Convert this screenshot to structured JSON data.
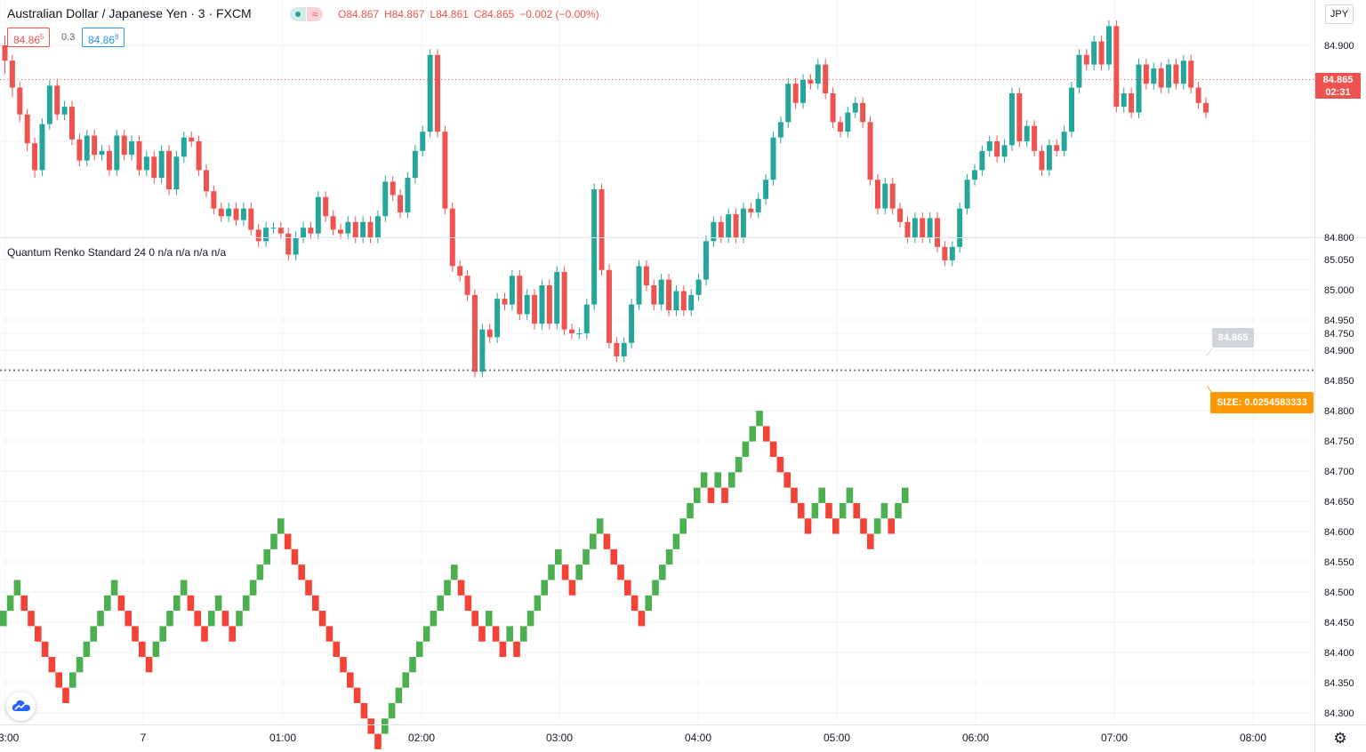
{
  "header": {
    "symbol_title": "Australian Dollar / Japanese Yen · 3 · FXCM",
    "ohlc": {
      "open": "O84.867",
      "high": "H84.867",
      "low": "L84.861",
      "close": "C84.865",
      "change": "−0.002 (−0.00%)"
    },
    "bid": {
      "main": "84.86",
      "small": "5"
    },
    "spread": "0.3",
    "ask": {
      "main": "84.86",
      "small": "8"
    },
    "currency": "JPY",
    "status_icon": "market-open-dot",
    "wave_icon": "≈"
  },
  "indicator": {
    "title": "Quantum Renko Standard 24 0  n/a  n/a  n/a  n/a"
  },
  "price_scale": {
    "top_ticks": [
      "84.900",
      "84.800",
      "84.750"
    ],
    "bottom_ticks": [
      "85.050",
      "85.000",
      "84.950",
      "84.900",
      "84.850",
      "84.800",
      "84.750",
      "84.700",
      "84.650",
      "84.600",
      "84.550",
      "84.500",
      "84.450",
      "84.400",
      "84.350",
      "84.300"
    ],
    "last_price": "84.865",
    "countdown": "02:31",
    "renko_last": "84.865",
    "size_label": "SIZE: 0.0254583333"
  },
  "time_axis": [
    "3:00",
    "7",
    "01:00",
    "02:00",
    "03:00",
    "04:00",
    "05:00",
    "06:00",
    "07:00",
    "08:00"
  ],
  "colors": {
    "up": "#26a69a",
    "down": "#ef5350",
    "renko_up": "#4caf50",
    "renko_down": "#f44336",
    "grid": "#f0f3fa",
    "accent_orange": "#ff9800"
  },
  "chart_data": [
    {
      "type": "candlestick",
      "title": "Australian Dollar / Japanese Yen · 3 · FXCM",
      "ylim": [
        84.715,
        84.935
      ],
      "x_range_hours": [
        -1.03,
        8.1
      ],
      "candles": [
        [
          84.9,
          84.892,
          84.905,
          84.885
        ],
        [
          84.892,
          84.878,
          84.895,
          84.873
        ],
        [
          84.878,
          84.864,
          84.881,
          84.86
        ],
        [
          84.864,
          84.849,
          84.867,
          84.845
        ],
        [
          84.849,
          84.835,
          84.852,
          84.831
        ],
        [
          84.835,
          84.859,
          84.862,
          84.832
        ],
        [
          84.859,
          84.879,
          84.882,
          84.856
        ],
        [
          84.879,
          84.864,
          84.882,
          84.861
        ],
        [
          84.864,
          84.868,
          84.871,
          84.861
        ],
        [
          84.868,
          84.851,
          84.871,
          84.848
        ],
        [
          84.851,
          84.84,
          84.854,
          84.837
        ],
        [
          84.84,
          84.853,
          84.856,
          84.837
        ],
        [
          84.853,
          84.843,
          84.856,
          84.84
        ],
        [
          84.843,
          84.845,
          84.848,
          84.84
        ],
        [
          84.845,
          84.835,
          84.848,
          84.832
        ],
        [
          84.835,
          84.853,
          84.856,
          84.832
        ],
        [
          84.853,
          84.843,
          84.856,
          84.84
        ],
        [
          84.843,
          84.85,
          84.853,
          84.84
        ],
        [
          84.85,
          84.835,
          84.853,
          84.832
        ],
        [
          84.835,
          84.842,
          84.845,
          84.832
        ],
        [
          84.842,
          84.831,
          84.845,
          84.828
        ],
        [
          84.831,
          84.845,
          84.848,
          84.828
        ],
        [
          84.845,
          84.825,
          84.848,
          84.822
        ],
        [
          84.825,
          84.842,
          84.845,
          84.822
        ],
        [
          84.842,
          84.852,
          84.855,
          84.839
        ],
        [
          84.852,
          84.85,
          84.855,
          84.847
        ],
        [
          84.85,
          84.835,
          84.853,
          84.832
        ],
        [
          84.835,
          84.824,
          84.838,
          84.821
        ],
        [
          84.824,
          84.815,
          84.827,
          84.812
        ],
        [
          84.815,
          84.811,
          84.818,
          84.808
        ],
        [
          84.811,
          84.815,
          84.818,
          84.808
        ],
        [
          84.815,
          84.809,
          84.818,
          84.806
        ],
        [
          84.809,
          84.815,
          84.818,
          84.806
        ],
        [
          84.815,
          84.804,
          84.818,
          84.801
        ],
        [
          84.804,
          84.798,
          84.807,
          84.795
        ],
        [
          84.798,
          84.805,
          84.808,
          84.795
        ],
        [
          84.805,
          84.805,
          84.808,
          84.802
        ],
        [
          84.805,
          84.802,
          84.808,
          84.799
        ],
        [
          84.802,
          84.791,
          84.805,
          84.788
        ],
        [
          84.791,
          84.8,
          84.803,
          84.788
        ],
        [
          84.8,
          84.805,
          84.808,
          84.797
        ],
        [
          84.805,
          84.802,
          84.808,
          84.799
        ],
        [
          84.802,
          84.821,
          84.824,
          84.799
        ],
        [
          84.821,
          84.811,
          84.824,
          84.808
        ],
        [
          84.811,
          84.804,
          84.814,
          84.801
        ],
        [
          84.804,
          84.802,
          84.807,
          84.799
        ],
        [
          84.802,
          84.808,
          84.811,
          84.799
        ],
        [
          84.808,
          84.8,
          84.811,
          84.797
        ],
        [
          84.8,
          84.808,
          84.811,
          84.797
        ],
        [
          84.808,
          84.8,
          84.811,
          84.797
        ],
        [
          84.8,
          84.811,
          84.814,
          84.797
        ],
        [
          84.811,
          84.829,
          84.832,
          84.808
        ],
        [
          84.829,
          84.822,
          84.832,
          84.819
        ],
        [
          84.822,
          84.813,
          84.825,
          84.81
        ],
        [
          84.813,
          84.831,
          84.834,
          84.81
        ],
        [
          84.831,
          84.845,
          84.848,
          84.828
        ],
        [
          84.845,
          84.855,
          84.858,
          84.842
        ],
        [
          84.855,
          84.895,
          84.898,
          84.852
        ],
        [
          84.895,
          84.855,
          84.898,
          84.852
        ],
        [
          84.855,
          84.815,
          84.858,
          84.812
        ],
        [
          84.815,
          84.785,
          84.818,
          84.782
        ],
        [
          84.785,
          84.78,
          84.788,
          84.777
        ],
        [
          84.78,
          84.77,
          84.783,
          84.767
        ],
        [
          84.77,
          84.73,
          84.773,
          84.727
        ],
        [
          84.73,
          84.752,
          84.755,
          84.727
        ],
        [
          84.752,
          84.748,
          84.755,
          84.745
        ],
        [
          84.748,
          84.768,
          84.771,
          84.745
        ],
        [
          84.768,
          84.765,
          84.771,
          84.762
        ],
        [
          84.765,
          84.78,
          84.783,
          84.762
        ],
        [
          84.78,
          84.76,
          84.783,
          84.757
        ],
        [
          84.76,
          84.77,
          84.773,
          84.757
        ],
        [
          84.77,
          84.755,
          84.773,
          84.752
        ],
        [
          84.755,
          84.775,
          84.778,
          84.752
        ],
        [
          84.775,
          84.755,
          84.778,
          84.752
        ],
        [
          84.755,
          84.782,
          84.785,
          84.752
        ],
        [
          84.782,
          84.752,
          84.785,
          84.749
        ],
        [
          84.752,
          84.75,
          84.755,
          84.747
        ],
        [
          84.75,
          84.75,
          84.753,
          84.747
        ],
        [
          84.75,
          84.765,
          84.768,
          84.747
        ],
        [
          84.765,
          84.825,
          84.828,
          84.762
        ],
        [
          84.825,
          84.783,
          84.828,
          84.78
        ],
        [
          84.783,
          84.745,
          84.786,
          84.742
        ],
        [
          84.745,
          84.738,
          84.748,
          84.735
        ],
        [
          84.738,
          84.745,
          84.748,
          84.735
        ],
        [
          84.745,
          84.765,
          84.768,
          84.742
        ],
        [
          84.765,
          84.785,
          84.788,
          84.762
        ],
        [
          84.785,
          84.775,
          84.788,
          84.772
        ],
        [
          84.775,
          84.765,
          84.778,
          84.762
        ],
        [
          84.765,
          84.778,
          84.781,
          84.762
        ],
        [
          84.778,
          84.762,
          84.781,
          84.759
        ],
        [
          84.762,
          84.772,
          84.775,
          84.759
        ],
        [
          84.772,
          84.762,
          84.775,
          84.759
        ],
        [
          84.762,
          84.77,
          84.773,
          84.759
        ],
        [
          84.77,
          84.778,
          84.781,
          84.767
        ],
        [
          84.778,
          84.798,
          84.801,
          84.775
        ],
        [
          84.798,
          84.808,
          84.811,
          84.795
        ],
        [
          84.808,
          84.8,
          84.811,
          84.797
        ],
        [
          84.8,
          84.812,
          84.815,
          84.797
        ],
        [
          84.812,
          84.8,
          84.815,
          84.797
        ],
        [
          84.8,
          84.815,
          84.818,
          84.797
        ],
        [
          84.815,
          84.813,
          84.818,
          84.81
        ],
        [
          84.813,
          84.82,
          84.823,
          84.81
        ],
        [
          84.82,
          84.83,
          84.833,
          84.817
        ],
        [
          84.83,
          84.852,
          84.855,
          84.827
        ],
        [
          84.852,
          84.86,
          84.863,
          84.849
        ],
        [
          84.86,
          84.88,
          84.883,
          84.857
        ],
        [
          84.88,
          84.87,
          84.883,
          84.867
        ],
        [
          84.87,
          84.882,
          84.885,
          84.867
        ],
        [
          84.882,
          84.88,
          84.885,
          84.877
        ],
        [
          84.88,
          84.89,
          84.893,
          84.877
        ],
        [
          84.89,
          84.875,
          84.893,
          84.872
        ],
        [
          84.875,
          84.86,
          84.878,
          84.857
        ],
        [
          84.86,
          84.855,
          84.863,
          84.852
        ],
        [
          84.855,
          84.865,
          84.868,
          84.852
        ],
        [
          84.865,
          84.87,
          84.873,
          84.862
        ],
        [
          84.87,
          84.86,
          84.873,
          84.857
        ],
        [
          84.86,
          84.83,
          84.863,
          84.827
        ],
        [
          84.83,
          84.815,
          84.833,
          84.812
        ],
        [
          84.815,
          84.828,
          84.831,
          84.812
        ],
        [
          84.828,
          84.815,
          84.831,
          84.812
        ],
        [
          84.815,
          84.808,
          84.818,
          84.805
        ],
        [
          84.808,
          84.8,
          84.811,
          84.797
        ],
        [
          84.8,
          84.81,
          84.813,
          84.797
        ],
        [
          84.81,
          84.8,
          84.813,
          84.797
        ],
        [
          84.8,
          84.81,
          84.813,
          84.797
        ],
        [
          84.81,
          84.795,
          84.813,
          84.792
        ],
        [
          84.795,
          84.788,
          84.798,
          84.785
        ],
        [
          84.788,
          84.795,
          84.798,
          84.785
        ],
        [
          84.795,
          84.815,
          84.818,
          84.792
        ],
        [
          84.815,
          84.83,
          84.833,
          84.812
        ],
        [
          84.83,
          84.835,
          84.838,
          84.827
        ],
        [
          84.835,
          84.845,
          84.848,
          84.832
        ],
        [
          84.845,
          84.85,
          84.853,
          84.842
        ],
        [
          84.85,
          84.842,
          84.853,
          84.839
        ],
        [
          84.842,
          84.848,
          84.851,
          84.839
        ],
        [
          84.848,
          84.875,
          84.878,
          84.845
        ],
        [
          84.875,
          84.85,
          84.878,
          84.847
        ],
        [
          84.85,
          84.858,
          84.861,
          84.847
        ],
        [
          84.858,
          84.845,
          84.861,
          84.842
        ],
        [
          84.845,
          84.835,
          84.848,
          84.832
        ],
        [
          84.835,
          84.848,
          84.851,
          84.832
        ],
        [
          84.848,
          84.845,
          84.851,
          84.842
        ],
        [
          84.845,
          84.855,
          84.858,
          84.842
        ],
        [
          84.855,
          84.878,
          84.881,
          84.852
        ],
        [
          84.878,
          84.895,
          84.898,
          84.875
        ],
        [
          84.895,
          84.89,
          84.898,
          84.887
        ],
        [
          84.89,
          84.902,
          84.905,
          84.887
        ],
        [
          84.902,
          84.89,
          84.905,
          84.887
        ],
        [
          84.89,
          84.91,
          84.913,
          84.887
        ],
        [
          84.91,
          84.868,
          84.913,
          84.865
        ],
        [
          84.868,
          84.875,
          84.878,
          84.865
        ],
        [
          84.875,
          84.865,
          84.878,
          84.862
        ],
        [
          84.865,
          84.89,
          84.893,
          84.862
        ],
        [
          84.89,
          84.88,
          84.893,
          84.877
        ],
        [
          84.88,
          84.888,
          84.891,
          84.877
        ],
        [
          84.888,
          84.878,
          84.891,
          84.875
        ],
        [
          84.878,
          84.89,
          84.893,
          84.875
        ],
        [
          84.89,
          84.88,
          84.893,
          84.877
        ],
        [
          84.88,
          84.892,
          84.895,
          84.877
        ],
        [
          84.892,
          84.878,
          84.895,
          84.875
        ],
        [
          84.878,
          84.87,
          84.881,
          84.867
        ],
        [
          84.87,
          84.865,
          84.873,
          84.862
        ]
      ]
    },
    {
      "type": "renko",
      "title": "Quantum Renko Standard 24 0",
      "brick_size": 0.0254583333,
      "ylim": [
        84.29,
        85.075
      ],
      "bricks": [
        1,
        1,
        1,
        -1,
        -1,
        -1,
        -1,
        -1,
        -1,
        -1,
        1,
        1,
        1,
        1,
        1,
        1,
        1,
        -1,
        -1,
        -1,
        -1,
        -1,
        1,
        1,
        1,
        1,
        1,
        -1,
        -1,
        -1,
        1,
        1,
        -1,
        -1,
        1,
        1,
        1,
        1,
        1,
        1,
        1,
        -1,
        -1,
        -1,
        -1,
        -1,
        -1,
        -1,
        -1,
        -1,
        -1,
        -1,
        -1,
        -1,
        -1,
        1,
        1,
        1,
        1,
        1,
        1,
        1,
        1,
        1,
        1,
        1,
        -1,
        -1,
        -1,
        -1,
        1,
        -1,
        -1,
        1,
        -1,
        1,
        1,
        1,
        1,
        1,
        1,
        -1,
        -1,
        1,
        1,
        1,
        1,
        -1,
        -1,
        -1,
        -1,
        -1,
        -1,
        1,
        1,
        1,
        1,
        1,
        1,
        1,
        1,
        1,
        -1,
        1,
        -1,
        1,
        1,
        1,
        1,
        1,
        -1,
        -1,
        -1,
        -1,
        -1,
        -1,
        -1,
        1,
        1,
        -1,
        -1,
        1,
        1,
        -1,
        -1,
        -1,
        1,
        1,
        -1,
        1,
        1
      ]
    }
  ]
}
